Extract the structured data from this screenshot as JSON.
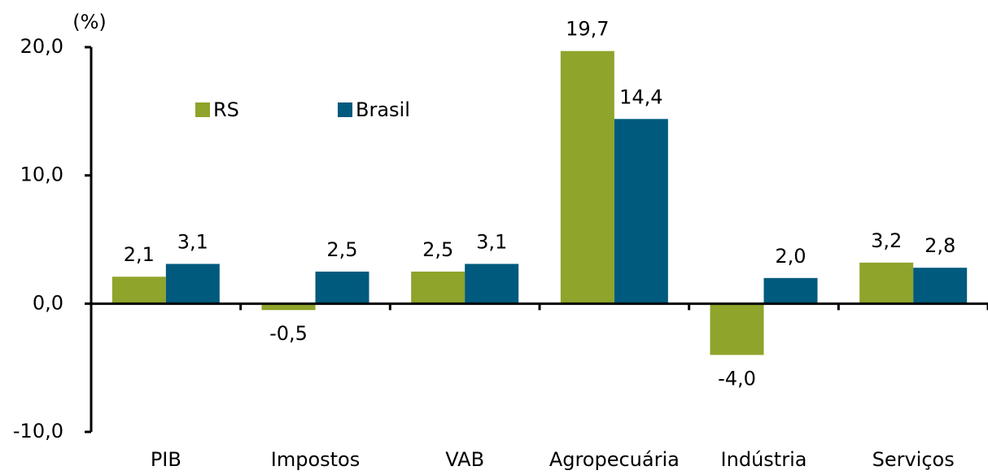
{
  "chart_data": {
    "type": "bar",
    "y_axis_label": "(%)",
    "categories": [
      "PIB",
      "Impostos",
      "VAB",
      "Agropecuária",
      "Indústria",
      "Serviços"
    ],
    "series": [
      {
        "name": "RS",
        "color": "#8ea42b",
        "values": [
          2.1,
          -0.5,
          2.5,
          19.7,
          -4.0,
          3.2
        ],
        "value_labels": [
          "2,1",
          "-0,5",
          "2,5",
          "19,7",
          "-4,0",
          "3,2"
        ]
      },
      {
        "name": "Brasil",
        "color": "#005a7d",
        "values": [
          3.1,
          2.5,
          3.1,
          14.4,
          2.0,
          2.8
        ],
        "value_labels": [
          "3,1",
          "2,5",
          "3,1",
          "14,4",
          "2,0",
          "2,8"
        ]
      }
    ],
    "ylim": [
      -10,
      20
    ],
    "yticks": [
      {
        "value": -10,
        "label": "-10,0"
      },
      {
        "value": 0,
        "label": "0,0"
      },
      {
        "value": 10,
        "label": "10,0"
      },
      {
        "value": 20,
        "label": "20,0"
      }
    ],
    "grid": false,
    "legend": "top-left"
  }
}
